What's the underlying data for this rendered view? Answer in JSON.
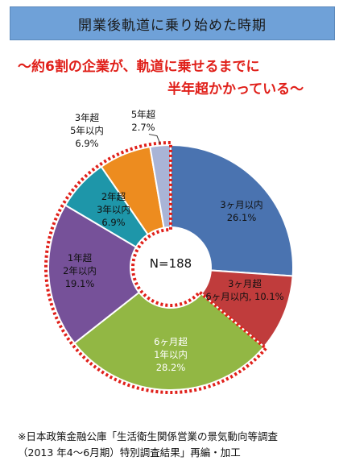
{
  "title": "開業後軌道に乗り始めた時期",
  "headline": {
    "line1": "～約6割の企業が、軌道に乗せるまでに",
    "line2": "半年超かかっている～"
  },
  "colors": {
    "banner": "#6fa1d8",
    "headline": "#e0201a",
    "highlight_border": "#e0201a"
  },
  "chart_data": {
    "type": "pie",
    "variant": "donut",
    "center_label": "N=188",
    "unit": "%",
    "highlighted_group": [
      "6ヶ月超 1年以内",
      "1年超 2年以内",
      "2年超 3年以内",
      "3年超 5年以内",
      "5年超"
    ],
    "slices": [
      {
        "label_lines": [
          "3ヶ月以内"
        ],
        "value": 26.1,
        "value_label": "26.1%",
        "color": "#4a73b0"
      },
      {
        "label_lines": [
          "3ヶ月超",
          "6ヶ月以内, 10.1%"
        ],
        "value": 10.1,
        "value_label": "",
        "color": "#c03c3c"
      },
      {
        "label_lines": [
          "6ヶ月超",
          "1年以内"
        ],
        "value": 28.2,
        "value_label": "28.2%",
        "color": "#92b744"
      },
      {
        "label_lines": [
          "1年超",
          "2年以内"
        ],
        "value": 19.1,
        "value_label": "19.1%",
        "color": "#765199"
      },
      {
        "label_lines": [
          "2年超",
          "3年以内"
        ],
        "value": 6.9,
        "value_label": "6.9%",
        "color": "#1e96a9"
      },
      {
        "label_lines": [
          "3年超",
          "5年以内"
        ],
        "value": 6.9,
        "value_label": "6.9%",
        "color": "#ed8c1f"
      },
      {
        "label_lines": [
          "5年超"
        ],
        "value": 2.7,
        "value_label": "2.7%",
        "color": "#a9b4d6"
      }
    ]
  },
  "footer": {
    "line1": "※日本政策金融公庫「生活衛生関係営業の景気動向等調査",
    "line2": "（2013 年4～6月期）特別調査結果」再編・加工"
  }
}
